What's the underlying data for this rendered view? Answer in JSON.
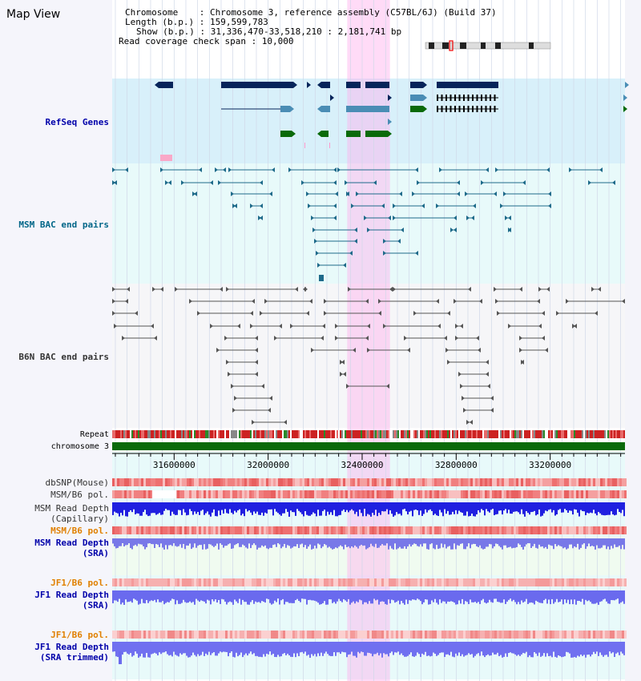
{
  "view": {
    "title": "Map View",
    "chromosome_line": "Chromosome    : Chromosome 3, reference assembly (C57BL/6J) (Build 37)",
    "length_line": "Length (b.p.) : 159,599,783",
    "show_line": "Show (b.p.) : 31,336,470-33,518,210 : 2,181,741 bp",
    "span_line": "Read coverage check span : 10,000",
    "range_start": 31336470,
    "range_end": 33518210,
    "highlight": [
      32336470,
      32518210
    ],
    "ticks": [
      {
        "value": 31600000,
        "label": "31600000"
      },
      {
        "value": 32000000,
        "label": "32000000"
      },
      {
        "value": 32400000,
        "label": "32400000"
      },
      {
        "value": 32800000,
        "label": "32800000"
      },
      {
        "value": 33200000,
        "label": "33200000"
      }
    ]
  },
  "tracks": {
    "refseq": {
      "label": "RefSeq Genes",
      "color": "#0000aa"
    },
    "msm_bac": {
      "label": "MSM BAC end pairs",
      "color": "#006688"
    },
    "b6n_bac": {
      "label": "B6N BAC end pairs",
      "color": "#333333"
    },
    "repeat": {
      "label": "Repeat",
      "color": "#000000"
    },
    "chromosome": {
      "label": "chromosome 3",
      "color": "#000000"
    },
    "dbsnp": {
      "label": "dbSNP(Mouse)",
      "color": "#333333"
    },
    "msm_pol1": {
      "label": "MSM/B6 pol.",
      "color": "#333333"
    },
    "msm_depth_cap": {
      "label1": "MSM Read Depth",
      "label2": "(Capillary)",
      "color": "#333333"
    },
    "msm_pol2": {
      "label": "MSM/B6 pol.",
      "color": "#e08000"
    },
    "msm_depth_sra": {
      "label1": "MSM Read Depth",
      "label2": "(SRA)",
      "color": "#0000aa"
    },
    "jf1_pol1": {
      "label": "JF1/B6 pol.",
      "color": "#e08000"
    },
    "jf1_depth_sra": {
      "label1": "JF1 Read Depth",
      "label2": "(SRA)",
      "color": "#0000aa"
    },
    "jf1_pol2": {
      "label": "JF1/B6 pol.",
      "color": "#e08000"
    },
    "jf1_depth_trim": {
      "label1": "JF1 Read Depth",
      "label2": "(SRA trimmed)",
      "color": "#0000aa"
    }
  }
}
